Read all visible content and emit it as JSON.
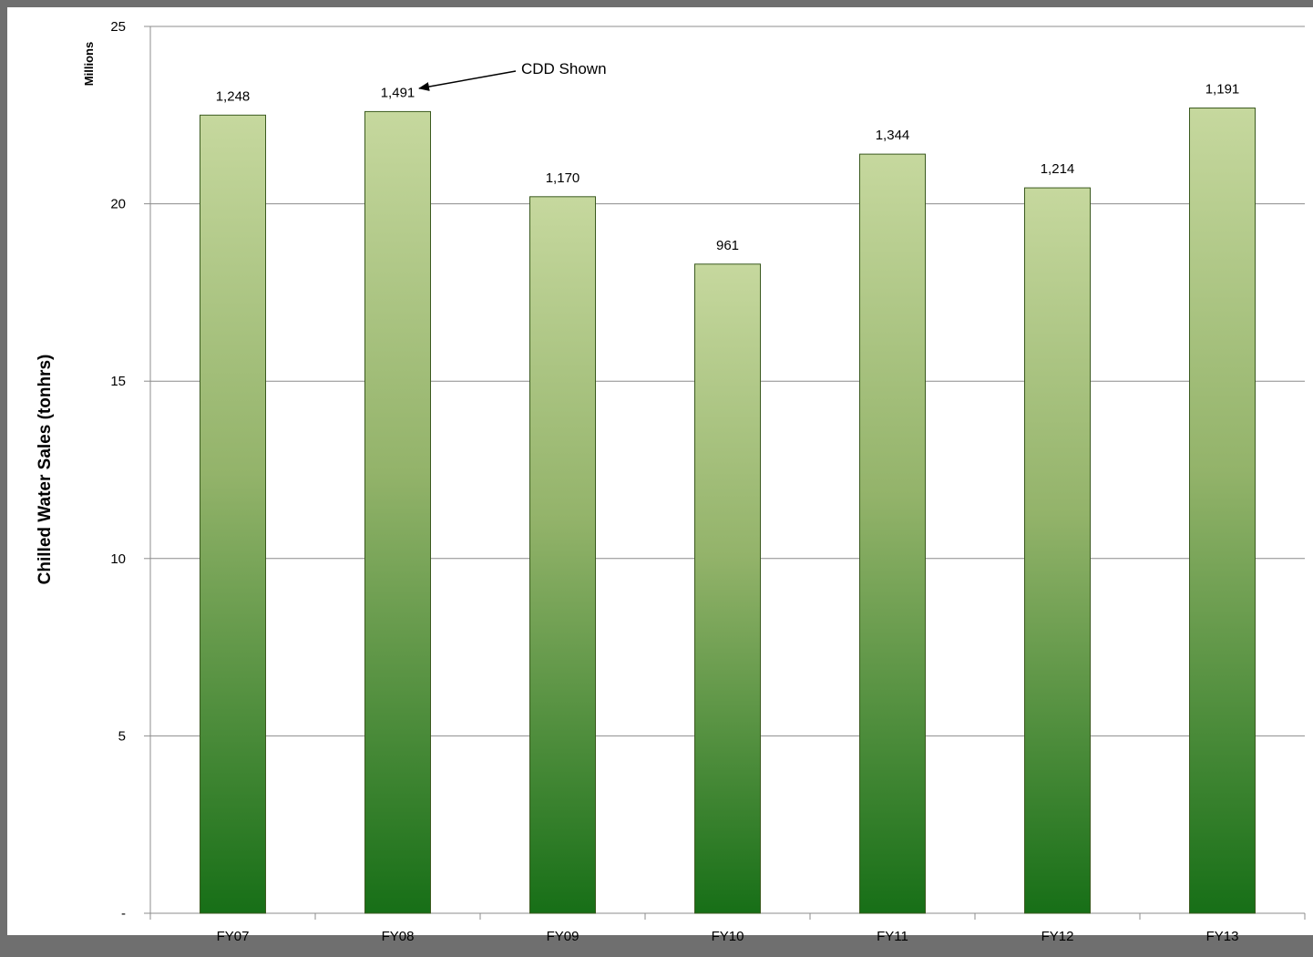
{
  "chart_data": {
    "type": "bar",
    "categories": [
      "FY07",
      "FY08",
      "FY09",
      "FY10",
      "FY11",
      "FY12",
      "FY13"
    ],
    "values": [
      22.5,
      22.6,
      20.2,
      18.3,
      21.4,
      20.45,
      22.7
    ],
    "data_labels": [
      "1,248",
      "1,491",
      "1,170",
      "961",
      "1,344",
      "1,214",
      "1,191"
    ],
    "ylabel": "Chilled Water Sales (tonhrs)",
    "y_units": "Millions",
    "ylim": [
      0,
      25
    ],
    "yticks": [
      0,
      5,
      10,
      15,
      20,
      25
    ],
    "ytick_labels": [
      "-",
      "5",
      "10",
      "15",
      "20",
      "25"
    ],
    "grid": true,
    "legend": "none",
    "annotation": {
      "text": "CDD Shown",
      "target_category": "FY08"
    },
    "colors": {
      "bar_top": "#c6d89e",
      "bar_mid": "#93b36a",
      "bar_bottom": "#176f17",
      "bar_border": "#3b5a1f",
      "grid": "#8c8c8c",
      "background_frame": "#6f6f6f"
    }
  }
}
